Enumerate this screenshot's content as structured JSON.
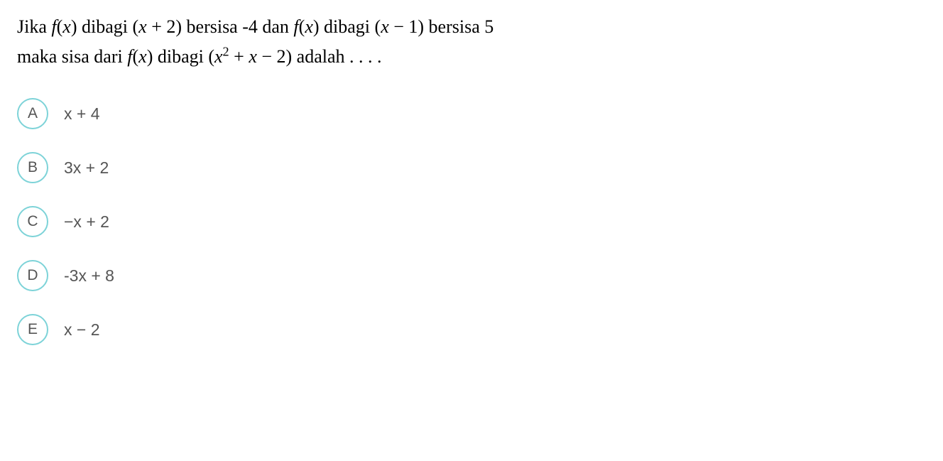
{
  "question": {
    "line1_parts": [
      {
        "text": "Jika ",
        "italic": false
      },
      {
        "text": "f",
        "italic": true
      },
      {
        "text": "(",
        "italic": false
      },
      {
        "text": "x",
        "italic": true
      },
      {
        "text": ") dibagi (",
        "italic": false
      },
      {
        "text": "x",
        "italic": true
      },
      {
        "text": " + 2) bersisa -4 dan ",
        "italic": false
      },
      {
        "text": "f",
        "italic": true
      },
      {
        "text": "(",
        "italic": false
      },
      {
        "text": "x",
        "italic": true
      },
      {
        "text": ") dibagi (",
        "italic": false
      },
      {
        "text": "x",
        "italic": true
      },
      {
        "text": " − 1) bersisa 5",
        "italic": false
      }
    ],
    "line2_prefix": "maka sisa dari ",
    "line2_fx_f": "f",
    "line2_fx_paren1": "(",
    "line2_fx_x": "x",
    "line2_fx_paren2": ") dibagi (",
    "line2_x2_x": "x",
    "line2_x2_sup": "2",
    "line2_after": " + ",
    "line2_x3": "x",
    "line2_suffix": " − 2) adalah . . . ."
  },
  "options": [
    {
      "letter": "A",
      "text": "x + 4"
    },
    {
      "letter": "B",
      "text": "3x + 2"
    },
    {
      "letter": "C",
      "text": "−x + 2"
    },
    {
      "letter": "D",
      "text": "-3x + 8"
    },
    {
      "letter": "E",
      "text": "x − 2"
    }
  ],
  "colors": {
    "circle_border": "#7dd3d8",
    "text_primary": "#000000",
    "text_secondary": "#555555",
    "background": "#ffffff"
  },
  "typography": {
    "question_fontsize": 26,
    "option_letter_fontsize": 21,
    "option_text_fontsize": 23,
    "question_font": "Times New Roman",
    "option_font": "Arial"
  }
}
